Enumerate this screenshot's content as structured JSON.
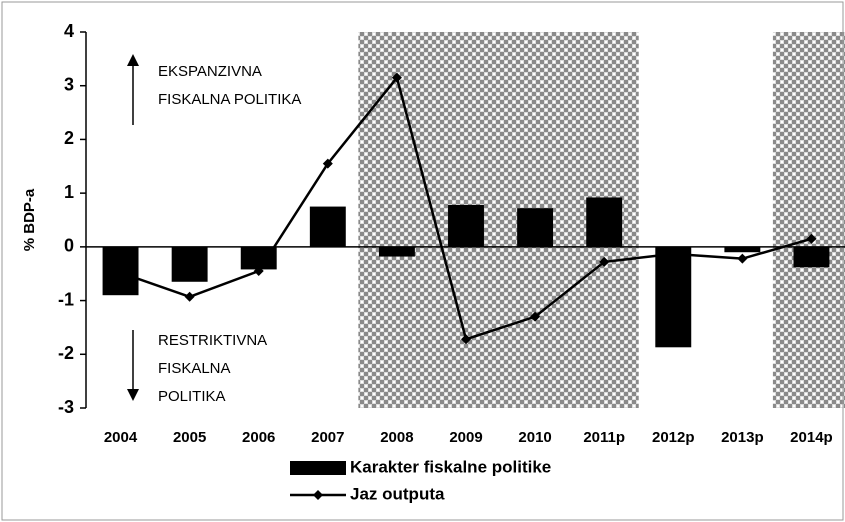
{
  "chart_data": {
    "type": "bar_line",
    "categories": [
      "2004",
      "2005",
      "2006",
      "2007",
      "2008",
      "2009",
      "2010",
      "2011p",
      "2012p",
      "2013p",
      "2014p"
    ],
    "series": [
      {
        "name": "Karakter fiskalne politike",
        "type": "bar",
        "color": "#000000",
        "values": [
          -0.9,
          -0.65,
          -0.42,
          0.75,
          -0.18,
          0.78,
          0.72,
          0.92,
          -1.87,
          -0.1,
          -0.38
        ]
      },
      {
        "name": "Jaz outputa",
        "type": "line",
        "color": "#000000",
        "values": [
          -0.48,
          -0.93,
          -0.45,
          1.55,
          3.15,
          -1.72,
          -1.3,
          -0.28,
          -0.13,
          -0.22,
          0.15
        ]
      }
    ],
    "shaded": [
      [
        "2008",
        "2011p"
      ],
      [
        "2014p",
        "2014p"
      ]
    ],
    "ylabel": "% BDP-a",
    "ylim": [
      -3,
      4
    ],
    "yticks": [
      -3,
      -2,
      -1,
      0,
      1,
      2,
      3,
      4
    ],
    "annotations": [
      {
        "lines": [
          "EKSPANZIVNA",
          "FISKALNA POLITIKA"
        ]
      },
      {
        "lines": [
          "RESTRIKTIVNA",
          "FISKALNA",
          "POLITIKA"
        ]
      }
    ]
  }
}
